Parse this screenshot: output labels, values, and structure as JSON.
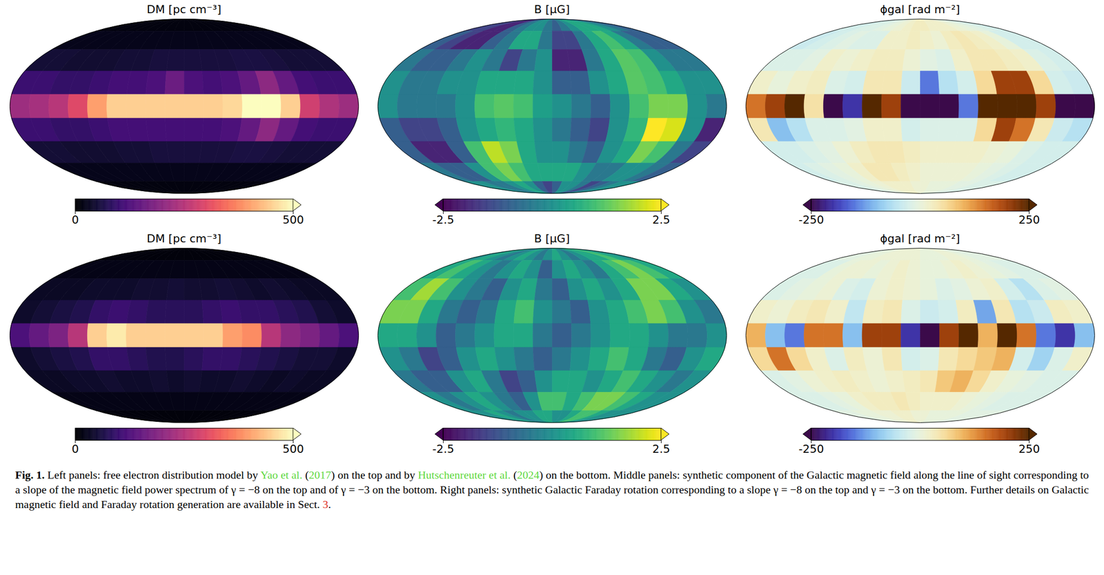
{
  "chart_data": [
    {
      "type": "map",
      "title": "DM [pc cm⁻³]",
      "color": "magma",
      "colorbar": {
        "range": [
          0,
          500
        ],
        "ticks": [
          0,
          500
        ]
      },
      "cells": [
        [
          15,
          15,
          15,
          15,
          15,
          15,
          15,
          15,
          15,
          15,
          15,
          15,
          15,
          15,
          15,
          15,
          15,
          15
        ],
        [
          25,
          25,
          25,
          25,
          25,
          25,
          25,
          25,
          25,
          25,
          25,
          25,
          25,
          25,
          25,
          25,
          25,
          25
        ],
        [
          50,
          50,
          45,
          45,
          45,
          50,
          50,
          55,
          55,
          55,
          55,
          55,
          60,
          60,
          55,
          50,
          50,
          50
        ],
        [
          100,
          100,
          90,
          90,
          100,
          110,
          110,
          120,
          160,
          120,
          110,
          120,
          150,
          200,
          150,
          110,
          100,
          100
        ],
        [
          220,
          230,
          250,
          300,
          400,
          450,
          450,
          450,
          450,
          450,
          450,
          460,
          500,
          500,
          450,
          280,
          240,
          220
        ],
        [
          100,
          100,
          90,
          90,
          100,
          110,
          110,
          110,
          110,
          110,
          110,
          120,
          150,
          200,
          150,
          110,
          100,
          100
        ],
        [
          50,
          50,
          45,
          45,
          45,
          50,
          50,
          55,
          55,
          55,
          55,
          55,
          60,
          60,
          55,
          50,
          50,
          50
        ],
        [
          25,
          25,
          25,
          25,
          25,
          25,
          25,
          25,
          25,
          25,
          25,
          25,
          25,
          25,
          25,
          25,
          25,
          25
        ],
        [
          15,
          15,
          15,
          15,
          15,
          15,
          15,
          15,
          15,
          15,
          15,
          15,
          15,
          15,
          15,
          15,
          15,
          15
        ]
      ]
    },
    {
      "type": "map",
      "title": "B [μG]",
      "color": "viridis",
      "colorbar": {
        "range": [
          -2.5,
          2.5
        ],
        "ticks": [
          -2.5,
          2.5
        ]
      },
      "cells": [
        [
          -1.5,
          -1.5,
          -2,
          -2,
          -1,
          -0.5,
          0,
          0,
          -0.5,
          -1,
          -0.5,
          0,
          0.5,
          0.5,
          0.5,
          0,
          -0.5,
          -1
        ],
        [
          -1,
          -1.5,
          -2,
          -2,
          -1,
          -0.5,
          0.5,
          0.5,
          -0.5,
          -1.5,
          -1.5,
          -0.5,
          0.5,
          1,
          0.5,
          -0.5,
          -1,
          -1
        ],
        [
          -0.5,
          -1,
          -1,
          -0.5,
          0,
          -0.5,
          -1.5,
          -0.5,
          0,
          -2,
          -2,
          -0.5,
          0.5,
          1.2,
          1,
          0,
          -0.5,
          -0.5
        ],
        [
          0,
          -0.5,
          -0.5,
          0,
          0,
          0.5,
          0.5,
          0.5,
          0,
          -1,
          -1,
          0,
          0.5,
          1.2,
          1,
          0.5,
          0,
          0
        ],
        [
          0,
          -0.5,
          -0.5,
          -0.5,
          0,
          1,
          1.2,
          1,
          0.3,
          0,
          -0.5,
          -1,
          0,
          1,
          1.5,
          1.5,
          0,
          -0.5
        ],
        [
          -1,
          -1.5,
          -1.5,
          -1,
          0,
          0.5,
          0.8,
          0.5,
          0,
          -0.5,
          -1,
          -1.5,
          0,
          0.8,
          2.5,
          2.2,
          0,
          -2
        ],
        [
          -1,
          -2,
          -2,
          -1,
          1,
          2,
          1.5,
          0.5,
          0,
          0,
          -0.5,
          -1,
          0,
          0.5,
          1.5,
          1,
          -0.5,
          -1.5
        ],
        [
          -0.5,
          -1,
          -1,
          0,
          1,
          1.5,
          1,
          0.5,
          0.5,
          0.5,
          0.5,
          0,
          -0.5,
          -0.5,
          0,
          0,
          -0.5,
          -1
        ],
        [
          0,
          0,
          -0.5,
          -0.5,
          0,
          0.5,
          0,
          -1,
          -1.5,
          -1,
          0,
          0,
          -0.5,
          -1.5,
          -1,
          -0.5,
          0,
          0
        ]
      ]
    },
    {
      "type": "map",
      "title": "ϕgal [rad m⁻²]",
      "color": [
        "#3b0a4a",
        "#3b3fd8",
        "#7cc6ef",
        "#d8f3f6",
        "#fbf5c6",
        "#f2b04a",
        "#c2460e",
        "#552800"
      ],
      "colorbar": {
        "range": [
          -250,
          250
        ],
        "ticks": [
          -250,
          250
        ]
      },
      "cells": [
        [
          -30,
          -30,
          -20,
          -20,
          -10,
          0,
          10,
          20,
          30,
          30,
          20,
          20,
          20,
          10,
          0,
          -10,
          -20,
          -30
        ],
        [
          -40,
          -30,
          -20,
          -10,
          -20,
          -20,
          20,
          20,
          30,
          20,
          10,
          30,
          40,
          30,
          20,
          0,
          -30,
          -30
        ],
        [
          -20,
          -20,
          -10,
          20,
          10,
          20,
          30,
          30,
          10,
          -10,
          -20,
          20,
          40,
          40,
          30,
          20,
          -20,
          -30
        ],
        [
          20,
          0,
          20,
          30,
          -20,
          -30,
          40,
          40,
          -40,
          -150,
          -60,
          -30,
          60,
          200,
          200,
          60,
          -30,
          -40
        ],
        [
          150,
          200,
          250,
          50,
          -250,
          -200,
          250,
          200,
          -250,
          -250,
          -250,
          -150,
          250,
          250,
          250,
          200,
          -250,
          -250
        ],
        [
          40,
          -100,
          -60,
          -20,
          -20,
          -10,
          20,
          20,
          -30,
          -20,
          -20,
          -20,
          60,
          200,
          150,
          40,
          -40,
          -60
        ],
        [
          -30,
          -30,
          -20,
          -10,
          10,
          30,
          40,
          40,
          30,
          20,
          20,
          20,
          20,
          10,
          0,
          -20,
          -30,
          -30
        ],
        [
          -30,
          -20,
          -10,
          0,
          20,
          40,
          40,
          30,
          20,
          10,
          10,
          10,
          10,
          0,
          -10,
          -20,
          -30,
          -30
        ],
        [
          -20,
          -20,
          -10,
          0,
          10,
          20,
          20,
          20,
          10,
          10,
          0,
          0,
          0,
          -10,
          -10,
          -20,
          -20,
          -20
        ]
      ]
    },
    {
      "type": "map",
      "title": "DM [pc cm⁻³]",
      "color": "magma",
      "colorbar": {
        "range": [
          0,
          500
        ],
        "ticks": [
          0,
          500
        ]
      },
      "cells": [
        [
          10,
          10,
          10,
          10,
          10,
          10,
          10,
          10,
          10,
          10,
          10,
          10,
          10,
          10,
          10,
          10,
          10,
          10
        ],
        [
          20,
          20,
          20,
          20,
          20,
          20,
          20,
          20,
          20,
          20,
          20,
          20,
          20,
          20,
          20,
          20,
          20,
          20
        ],
        [
          35,
          35,
          35,
          40,
          40,
          40,
          45,
          45,
          50,
          45,
          45,
          50,
          45,
          40,
          45,
          40,
          35,
          35
        ],
        [
          40,
          50,
          60,
          70,
          90,
          100,
          90,
          80,
          80,
          80,
          90,
          100,
          90,
          90,
          80,
          70,
          50,
          40
        ],
        [
          120,
          150,
          180,
          250,
          450,
          480,
          450,
          450,
          450,
          450,
          450,
          400,
          380,
          250,
          200,
          180,
          150,
          120
        ],
        [
          40,
          50,
          60,
          70,
          90,
          90,
          80,
          70,
          70,
          80,
          90,
          90,
          80,
          70,
          60,
          50,
          50,
          40
        ],
        [
          35,
          35,
          40,
          40,
          45,
          40,
          40,
          45,
          40,
          45,
          40,
          40,
          45,
          40,
          35,
          40,
          35,
          35
        ],
        [
          20,
          20,
          20,
          20,
          20,
          20,
          20,
          20,
          20,
          20,
          20,
          20,
          20,
          20,
          20,
          20,
          20,
          20
        ],
        [
          10,
          10,
          10,
          10,
          10,
          10,
          10,
          10,
          10,
          10,
          10,
          10,
          10,
          10,
          10,
          10,
          10,
          10
        ]
      ]
    },
    {
      "type": "map",
      "title": "B [μG]",
      "color": "viridis",
      "colorbar": {
        "range": [
          -2.5,
          2.5
        ],
        "ticks": [
          -2.5,
          2.5
        ]
      },
      "cells": [
        [
          0,
          0.5,
          0,
          -0.5,
          0,
          0.5,
          0,
          -0.5,
          0,
          0.5,
          0,
          -0.5,
          0,
          0.5,
          0.5,
          1,
          0.5,
          0
        ],
        [
          0.5,
          1,
          0.5,
          0,
          -0.5,
          0,
          0.5,
          0,
          -1,
          0,
          0.5,
          0,
          -0.5,
          0.5,
          1,
          1.5,
          1,
          0.5
        ],
        [
          1,
          1.8,
          1,
          0,
          -0.5,
          -1,
          0,
          0.5,
          -0.5,
          -1,
          0,
          0.5,
          0,
          0.5,
          1.5,
          1.5,
          0.5,
          0
        ],
        [
          1.5,
          1.5,
          0.5,
          -0.5,
          -1,
          -0.5,
          0.5,
          1,
          0,
          -0.5,
          -1,
          0,
          0.5,
          1,
          1.5,
          1,
          0,
          -0.5
        ],
        [
          0.5,
          0.5,
          0,
          -1,
          -0.5,
          0,
          0.5,
          0.5,
          -0.5,
          -1,
          -0.5,
          0,
          0.5,
          0.5,
          0,
          -0.5,
          -0.5,
          0
        ],
        [
          0,
          -0.5,
          -1.5,
          -1,
          0,
          0.5,
          0,
          -0.5,
          -1,
          -0.5,
          0,
          0.5,
          1,
          0.5,
          -0.5,
          -1,
          0,
          0.5
        ],
        [
          -0.5,
          -1,
          -1,
          0,
          0.5,
          -0.5,
          -1.5,
          -1,
          0,
          0.5,
          0.5,
          0,
          0.5,
          1,
          0.5,
          0,
          -0.5,
          0
        ],
        [
          0,
          -0.5,
          0,
          0.5,
          0,
          -0.5,
          -1,
          0,
          1,
          1,
          0.5,
          1,
          1.5,
          1.5,
          1,
          0.5,
          0,
          0
        ],
        [
          0,
          0,
          0.5,
          0,
          -0.5,
          0,
          0,
          0.5,
          0.5,
          0,
          0,
          0.5,
          1,
          1,
          0.5,
          0,
          0,
          0
        ]
      ]
    },
    {
      "type": "map",
      "title": "ϕgal [rad m⁻²]",
      "color": [
        "#3b0a4a",
        "#3b3fd8",
        "#7cc6ef",
        "#d8f3f6",
        "#fbf5c6",
        "#f2b04a",
        "#c2460e",
        "#552800"
      ],
      "colorbar": {
        "range": [
          -250,
          250
        ],
        "ticks": [
          -250,
          250
        ]
      },
      "cells": [
        [
          -10,
          -10,
          0,
          0,
          10,
          10,
          10,
          10,
          10,
          0,
          0,
          0,
          10,
          10,
          0,
          -10,
          -10,
          -10
        ],
        [
          -20,
          -20,
          0,
          10,
          10,
          0,
          10,
          20,
          10,
          0,
          0,
          10,
          20,
          10,
          0,
          -10,
          -20,
          -20
        ],
        [
          -20,
          -10,
          0,
          10,
          -20,
          -30,
          10,
          20,
          10,
          0,
          -20,
          -10,
          10,
          20,
          -30,
          -60,
          -20,
          -10
        ],
        [
          20,
          10,
          30,
          40,
          20,
          -50,
          30,
          40,
          -20,
          -40,
          -30,
          30,
          -120,
          40,
          -60,
          -40,
          30,
          20
        ],
        [
          100,
          -100,
          -150,
          150,
          150,
          -100,
          200,
          200,
          -200,
          -250,
          200,
          250,
          100,
          250,
          150,
          -150,
          -200,
          -100
        ],
        [
          60,
          150,
          60,
          20,
          -20,
          30,
          10,
          40,
          -30,
          -20,
          40,
          60,
          80,
          100,
          -30,
          -80,
          -20,
          20
        ],
        [
          -20,
          -10,
          10,
          20,
          30,
          20,
          10,
          20,
          30,
          40,
          80,
          100,
          60,
          20,
          0,
          -10,
          -20,
          -20
        ],
        [
          -20,
          -20,
          -10,
          0,
          20,
          30,
          30,
          40,
          30,
          20,
          20,
          20,
          10,
          0,
          -10,
          -20,
          -20,
          -20
        ],
        [
          -10,
          -10,
          0,
          0,
          10,
          10,
          20,
          20,
          10,
          10,
          0,
          0,
          0,
          0,
          -10,
          -10,
          -10,
          -10
        ]
      ]
    }
  ],
  "caption": [
    {
      "text": "Fig. 1."
    },
    {
      "text": " Left panels: free electron distribution model by "
    },
    {
      "text": "Yao et al.",
      "color": "#5fd93f"
    },
    {
      "text": " ("
    },
    {
      "text": "2017",
      "color": "#5fd93f"
    },
    {
      "text": ") on the top and by "
    },
    {
      "text": "Hutschenreuter et al.",
      "color": "#5fd93f"
    },
    {
      "text": " ("
    },
    {
      "text": "2024",
      "color": "#5fd93f"
    },
    {
      "text": ") on the bottom. Middle panels: synthetic component of the Galactic magnetic field along the line of sight corresponding to a slope of the magnetic field power spectrum of γ = −8 on the top and of γ = −3 on the bottom. Right panels: synthetic Galactic Faraday rotation corresponding to a slope γ = −8 on the top and γ = −3 on the bottom. Further details on Galactic magnetic field and Faraday rotation generation are available in Sect. "
    },
    {
      "text": "3",
      "color": "#e0301e"
    },
    {
      "text": "."
    }
  ]
}
